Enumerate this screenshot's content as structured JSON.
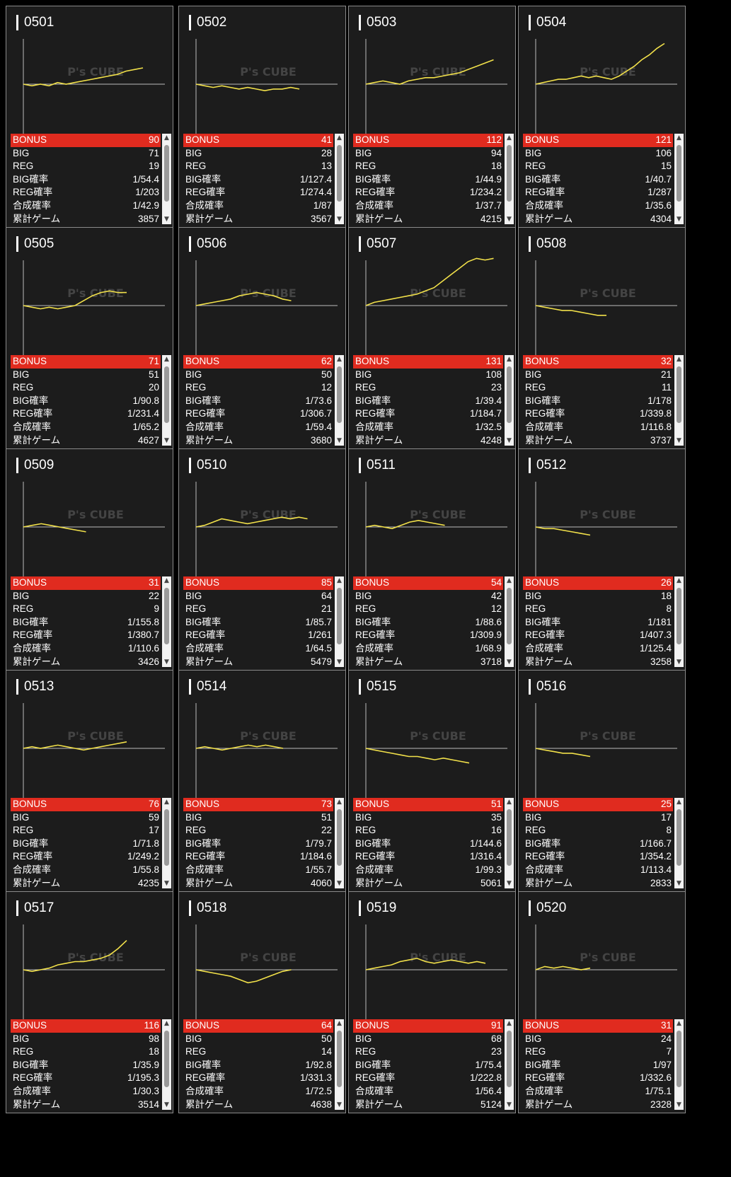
{
  "accent_color": "#e02b1f",
  "line_color": "#f2e14a",
  "watermark": "P's CUBE",
  "labels": {
    "bonus": "BONUS",
    "big": "BIG",
    "reg": "REG",
    "big_rate": "BIG確率",
    "reg_rate": "REG確率",
    "total_rate": "合成確率",
    "games": "累計ゲーム"
  },
  "machines": [
    {
      "id": "0501",
      "bonus": "90",
      "big": "71",
      "reg": "19",
      "big_rate": "1/54.4",
      "reg_rate": "1/203",
      "total_rate": "1/42.9",
      "games": "3857",
      "trend": [
        0,
        -1,
        0,
        -1,
        1,
        0,
        1,
        2,
        3,
        4,
        5,
        6,
        8,
        9,
        10
      ]
    },
    {
      "id": "0502",
      "bonus": "41",
      "big": "28",
      "reg": "13",
      "big_rate": "1/127.4",
      "reg_rate": "1/274.4",
      "total_rate": "1/87",
      "games": "3567",
      "trend": [
        0,
        -1,
        -2,
        -1,
        -2,
        -3,
        -2,
        -3,
        -4,
        -3,
        -3,
        -2,
        -3
      ]
    },
    {
      "id": "0503",
      "bonus": "112",
      "big": "94",
      "reg": "18",
      "big_rate": "1/44.9",
      "reg_rate": "1/234.2",
      "total_rate": "1/37.7",
      "games": "4215",
      "trend": [
        0,
        1,
        2,
        1,
        0,
        2,
        3,
        4,
        4,
        5,
        6,
        7,
        9,
        11,
        13,
        15
      ]
    },
    {
      "id": "0504",
      "bonus": "121",
      "big": "106",
      "reg": "15",
      "big_rate": "1/40.7",
      "reg_rate": "1/287",
      "total_rate": "1/35.6",
      "games": "4304",
      "trend": [
        0,
        1,
        2,
        3,
        3,
        4,
        5,
        4,
        5,
        4,
        3,
        5,
        8,
        11,
        15,
        18,
        22,
        25
      ]
    },
    {
      "id": "0505",
      "bonus": "71",
      "big": "51",
      "reg": "20",
      "big_rate": "1/90.8",
      "reg_rate": "1/231.4",
      "total_rate": "1/65.2",
      "games": "4627",
      "trend": [
        0,
        -1,
        -2,
        -1,
        -2,
        -1,
        0,
        3,
        6,
        8,
        9,
        8,
        8
      ]
    },
    {
      "id": "0506",
      "bonus": "62",
      "big": "50",
      "reg": "12",
      "big_rate": "1/73.6",
      "reg_rate": "1/306.7",
      "total_rate": "1/59.4",
      "games": "3680",
      "trend": [
        0,
        1,
        2,
        3,
        4,
        6,
        7,
        8,
        7,
        6,
        4,
        3
      ]
    },
    {
      "id": "0507",
      "bonus": "131",
      "big": "108",
      "reg": "23",
      "big_rate": "1/39.4",
      "reg_rate": "1/184.7",
      "total_rate": "1/32.5",
      "games": "4248",
      "trend": [
        0,
        2,
        3,
        4,
        5,
        6,
        7,
        9,
        11,
        15,
        19,
        23,
        27,
        29,
        28,
        29
      ]
    },
    {
      "id": "0508",
      "bonus": "32",
      "big": "21",
      "reg": "11",
      "big_rate": "1/178",
      "reg_rate": "1/339.8",
      "total_rate": "1/116.8",
      "games": "3737",
      "trend": [
        0,
        -1,
        -2,
        -3,
        -3,
        -4,
        -5,
        -6,
        -6
      ]
    },
    {
      "id": "0509",
      "bonus": "31",
      "big": "22",
      "reg": "9",
      "big_rate": "1/155.8",
      "reg_rate": "1/380.7",
      "total_rate": "1/110.6",
      "games": "3426",
      "trend": [
        0,
        1,
        2,
        1,
        0,
        -1,
        -2,
        -3
      ]
    },
    {
      "id": "0510",
      "bonus": "85",
      "big": "64",
      "reg": "21",
      "big_rate": "1/85.7",
      "reg_rate": "1/261",
      "total_rate": "1/64.5",
      "games": "5479",
      "trend": [
        0,
        1,
        3,
        5,
        4,
        3,
        2,
        3,
        4,
        5,
        6,
        5,
        6,
        5
      ]
    },
    {
      "id": "0511",
      "bonus": "54",
      "big": "42",
      "reg": "12",
      "big_rate": "1/88.6",
      "reg_rate": "1/309.9",
      "total_rate": "1/68.9",
      "games": "3718",
      "trend": [
        0,
        1,
        0,
        -1,
        1,
        3,
        4,
        3,
        2,
        1
      ]
    },
    {
      "id": "0512",
      "bonus": "26",
      "big": "18",
      "reg": "8",
      "big_rate": "1/181",
      "reg_rate": "1/407.3",
      "total_rate": "1/125.4",
      "games": "3258",
      "trend": [
        0,
        -1,
        -1,
        -2,
        -3,
        -4,
        -5
      ]
    },
    {
      "id": "0513",
      "bonus": "76",
      "big": "59",
      "reg": "17",
      "big_rate": "1/71.8",
      "reg_rate": "1/249.2",
      "total_rate": "1/55.8",
      "games": "4235",
      "trend": [
        0,
        1,
        0,
        1,
        2,
        1,
        0,
        -1,
        0,
        1,
        2,
        3,
        4
      ]
    },
    {
      "id": "0514",
      "bonus": "73",
      "big": "51",
      "reg": "22",
      "big_rate": "1/79.7",
      "reg_rate": "1/184.6",
      "total_rate": "1/55.7",
      "games": "4060",
      "trend": [
        0,
        1,
        0,
        -1,
        0,
        1,
        2,
        1,
        2,
        1,
        0
      ]
    },
    {
      "id": "0515",
      "bonus": "51",
      "big": "35",
      "reg": "16",
      "big_rate": "1/144.6",
      "reg_rate": "1/316.4",
      "total_rate": "1/99.3",
      "games": "5061",
      "trend": [
        0,
        -1,
        -2,
        -3,
        -4,
        -5,
        -5,
        -6,
        -7,
        -6,
        -7,
        -8,
        -9
      ]
    },
    {
      "id": "0516",
      "bonus": "25",
      "big": "17",
      "reg": "8",
      "big_rate": "1/166.7",
      "reg_rate": "1/354.2",
      "total_rate": "1/113.4",
      "games": "2833",
      "trend": [
        0,
        -1,
        -2,
        -3,
        -3,
        -4,
        -5
      ]
    },
    {
      "id": "0517",
      "bonus": "116",
      "big": "98",
      "reg": "18",
      "big_rate": "1/35.9",
      "reg_rate": "1/195.3",
      "total_rate": "1/30.3",
      "games": "3514",
      "trend": [
        0,
        -1,
        0,
        1,
        3,
        4,
        5,
        5,
        6,
        7,
        9,
        13,
        18
      ]
    },
    {
      "id": "0518",
      "bonus": "64",
      "big": "50",
      "reg": "14",
      "big_rate": "1/92.8",
      "reg_rate": "1/331.3",
      "total_rate": "1/72.5",
      "games": "4638",
      "trend": [
        0,
        -1,
        -2,
        -3,
        -4,
        -6,
        -8,
        -7,
        -5,
        -3,
        -1,
        0
      ]
    },
    {
      "id": "0519",
      "bonus": "91",
      "big": "68",
      "reg": "23",
      "big_rate": "1/75.4",
      "reg_rate": "1/222.8",
      "total_rate": "1/56.4",
      "games": "5124",
      "trend": [
        0,
        1,
        2,
        3,
        5,
        6,
        7,
        5,
        4,
        5,
        6,
        5,
        4,
        5,
        4
      ]
    },
    {
      "id": "0520",
      "bonus": "31",
      "big": "24",
      "reg": "7",
      "big_rate": "1/97",
      "reg_rate": "1/332.6",
      "total_rate": "1/75.1",
      "games": "2328",
      "trend": [
        0,
        2,
        1,
        2,
        1,
        0,
        1
      ]
    }
  ]
}
